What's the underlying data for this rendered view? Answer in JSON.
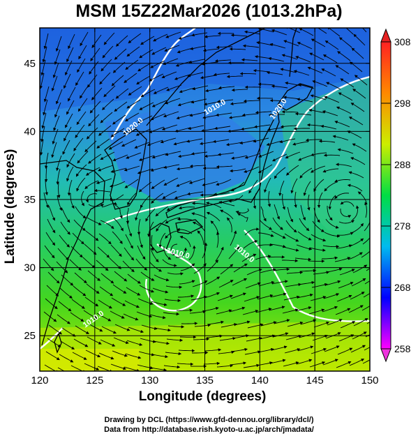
{
  "title": "MSM 15Z22Mar2026 (1013.2hPa)",
  "xaxis": {
    "label": "Longitude (degrees)",
    "ticks": [
      "120",
      "125",
      "130",
      "135",
      "140",
      "145",
      "150"
    ]
  },
  "yaxis": {
    "label": "Latitude  (degrees)",
    "ticks": [
      "25",
      "30",
      "35",
      "40",
      "45"
    ]
  },
  "colorbar": {
    "ticks": [
      "308",
      "298",
      "288",
      "278",
      "268",
      "258"
    ],
    "colors": [
      "#ff00ff",
      "#0000ff",
      "#00bbee",
      "#00dd44",
      "#ccee00",
      "#ff8800",
      "#ff2222"
    ]
  },
  "contour_labels": [
    "1020.0",
    "1020.0",
    "1010.0",
    "1010.0",
    "1010.0",
    "1010.0"
  ],
  "credits": {
    "line1": "Drawing by DCL (https://www.gfd-dennou.org/library/dcl/)",
    "line2": "Data from http://database.rish.kyoto-u.ac.jp/arch/jmadata/"
  },
  "chart_data": {
    "type": "heatmap",
    "title": "MSM 15Z22Mar2026 (1013.2hPa)",
    "xlabel": "Longitude (degrees)",
    "ylabel": "Latitude  (degrees)",
    "xlim": [
      120,
      150
    ],
    "ylim": [
      22.4,
      47.6
    ],
    "xticks": [
      120,
      125,
      130,
      135,
      140,
      145,
      150
    ],
    "yticks": [
      25,
      30,
      35,
      40,
      45
    ],
    "colorbar_range": [
      258,
      308
    ],
    "colorbar_ticks": [
      258,
      268,
      278,
      288,
      298,
      308
    ],
    "grid": true,
    "cyclone_centers": [
      {
        "lon": 132.4,
        "lat": 31.2
      },
      {
        "lon": 148.0,
        "lat": 34.2
      },
      {
        "lon": 124.3,
        "lat": 35.0
      }
    ]
  }
}
